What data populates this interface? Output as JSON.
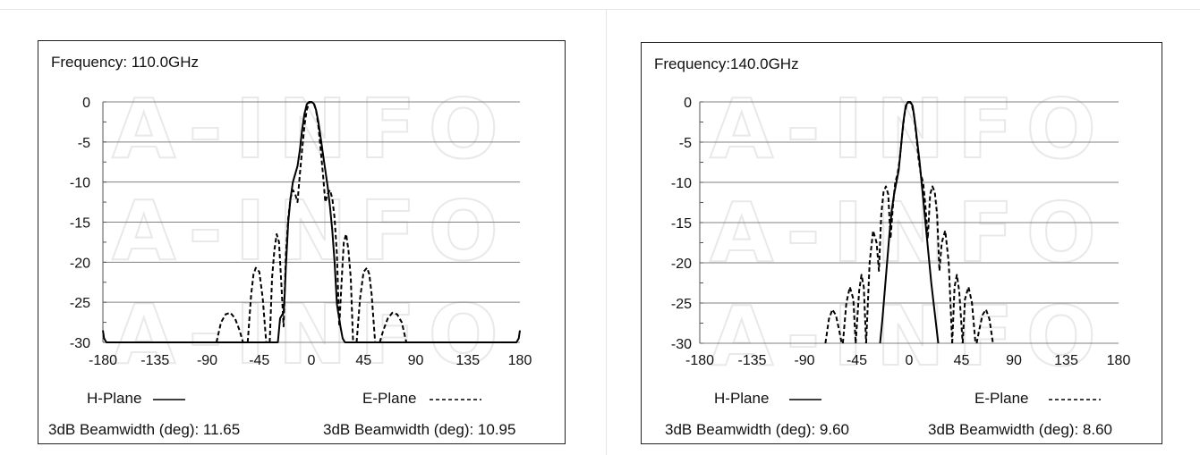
{
  "colors": {
    "line": "#000000",
    "grid": "#808080",
    "watermark": "#e9e9e9"
  },
  "watermark_text": "A-INFO",
  "chart_data": [
    {
      "type": "line",
      "title": "Frequency: 110.0GHz",
      "xlim": [
        -180,
        180
      ],
      "ylim": [
        -30,
        0
      ],
      "xticks": [
        "-180",
        "-135",
        "-90",
        "-45",
        "0",
        "45",
        "90",
        "135",
        "180"
      ],
      "yticks": [
        "0",
        "-5",
        "-10",
        "-15",
        "-20",
        "-25",
        "-30"
      ],
      "grid": "horizontal",
      "series": [
        {
          "name": "H-Plane",
          "style": "solid",
          "x": [
            -180,
            -179,
            -177,
            -29,
            -27,
            -25,
            -24,
            -23,
            -22,
            -20,
            -18,
            -16,
            -14,
            -12,
            -10,
            -8,
            -6,
            -4,
            -2,
            0,
            2,
            4,
            6,
            8,
            10,
            12,
            14,
            16,
            18,
            20,
            22,
            23,
            24,
            25,
            27,
            29,
            177,
            179,
            180
          ],
          "y": [
            -28.5,
            -29.5,
            -30,
            -30,
            -27,
            -26.5,
            -26.3,
            -24,
            -20.5,
            -15,
            -12,
            -10,
            -9,
            -8,
            -6,
            -3.5,
            -1.5,
            -0.3,
            0,
            0,
            -0.2,
            -1.0,
            -2.5,
            -4.5,
            -6.5,
            -8.5,
            -10.5,
            -13,
            -16,
            -20,
            -25.2,
            -26.2,
            -27,
            -28,
            -29.5,
            -30,
            -30,
            -29.5,
            -28.5
          ]
        },
        {
          "name": "E-Plane",
          "style": "dashed",
          "segments": [
            {
              "x": [
                -82,
                -78,
                -74,
                -70,
                -66,
                -62,
                -59
              ],
              "y": [
                -30,
                -27.5,
                -26.5,
                -26.3,
                -27,
                -28.5,
                -30
              ]
            },
            {
              "x": [
                -55,
                -52,
                -50,
                -48,
                -45,
                -42,
                -39
              ],
              "y": [
                -30,
                -24,
                -21.5,
                -20.7,
                -21.2,
                -24.5,
                -30
              ]
            },
            {
              "x": [
                -36,
                -34,
                -32,
                -30,
                -28,
                -26,
                -24,
                -22,
                -20,
                -18,
                -16,
                -14,
                -12,
                -10,
                -8,
                -6,
                -4,
                -2,
                0,
                2,
                4,
                6,
                8,
                10,
                12,
                14,
                16,
                18,
                20,
                22,
                24,
                26,
                28,
                30,
                32,
                34,
                36
              ],
              "y": [
                -30,
                -22,
                -18.5,
                -16.5,
                -17.5,
                -22.5,
                -28,
                -19,
                -14.5,
                -12,
                -11,
                -11.5,
                -12.5,
                -9,
                -6,
                -3,
                -1,
                -0.1,
                0,
                -0.1,
                -1,
                -3,
                -6,
                -9,
                -12.5,
                -11.5,
                -11,
                -12,
                -14.5,
                -19,
                -28,
                -22.5,
                -17.5,
                -16.5,
                -18.5,
                -22,
                -30
              ]
            },
            {
              "x": [
                39,
                42,
                45,
                48,
                50,
                52,
                55
              ],
              "y": [
                -30,
                -24.5,
                -21.2,
                -20.7,
                -21.5,
                -24,
                -30
              ]
            },
            {
              "x": [
                59,
                62,
                66,
                70,
                74,
                78,
                82
              ],
              "y": [
                -30,
                -28.5,
                -27,
                -26.3,
                -26.5,
                -27.5,
                -30
              ]
            }
          ]
        }
      ],
      "legend": [
        {
          "label": "H-Plane",
          "style": "solid"
        },
        {
          "label": "E-Plane",
          "style": "dashed"
        }
      ],
      "beamwidth": {
        "h": "3dB Beamwidth (deg): 11.65",
        "e": "3dB Beamwidth (deg): 10.95"
      }
    },
    {
      "type": "line",
      "title": "Frequency:140.0GHz",
      "xlim": [
        -180,
        180
      ],
      "ylim": [
        -30,
        0
      ],
      "xticks": [
        "-180",
        "-135",
        "-90",
        "-45",
        "0",
        "45",
        "90",
        "135",
        "180"
      ],
      "yticks": [
        "0",
        "-5",
        "-10",
        "-15",
        "-20",
        "-25",
        "-30"
      ],
      "grid": "horizontal",
      "series": [
        {
          "name": "H-Plane",
          "style": "solid",
          "x": [
            -25,
            -23,
            -21,
            -19,
            -17,
            -15,
            -13,
            -11,
            -9,
            -7,
            -5,
            -3,
            -1,
            0,
            1,
            3,
            5,
            7,
            9,
            11,
            13,
            15,
            17,
            19,
            21,
            23,
            25
          ],
          "y": [
            -30,
            -27,
            -23.5,
            -20,
            -16.5,
            -13.5,
            -11.5,
            -10,
            -8.5,
            -5.5,
            -2.5,
            -0.5,
            0,
            0,
            0,
            -0.5,
            -2.5,
            -5,
            -7.5,
            -10.5,
            -13.5,
            -16.5,
            -19.5,
            -22.5,
            -25,
            -27.5,
            -30
          ]
        },
        {
          "name": "E-Plane",
          "style": "dashed",
          "segments": [
            {
              "x": [
                -72,
                -69,
                -66,
                -63,
                -60,
                -58
              ],
              "y": [
                -30,
                -27,
                -25.8,
                -26.5,
                -28.5,
                -30
              ]
            },
            {
              "x": [
                -57,
                -54,
                -51,
                -48,
                -46
              ],
              "y": [
                -30,
                -25,
                -23,
                -24.5,
                -30
              ]
            },
            {
              "x": [
                -46,
                -43,
                -41,
                -39,
                -37
              ],
              "y": [
                -30,
                -23.5,
                -21.5,
                -23,
                -30
              ]
            },
            {
              "x": [
                -37,
                -34,
                -31,
                -28,
                -26,
                -24,
                -22,
                -20,
                -18,
                -16,
                -14,
                -12,
                -10,
                -8,
                -6,
                -4,
                -2,
                0,
                2,
                4,
                6,
                8,
                10,
                12,
                14,
                16,
                18,
                20,
                22,
                24,
                26,
                28,
                31,
                34,
                37
              ],
              "y": [
                -30,
                -20,
                -16,
                -17.5,
                -21,
                -14,
                -11.2,
                -10.5,
                -11.5,
                -17,
                -13,
                -10,
                -9,
                -7,
                -4,
                -1.5,
                -0.2,
                0,
                -0.2,
                -1.5,
                -4,
                -7,
                -9,
                -10,
                -13,
                -17,
                -11.5,
                -10.5,
                -11.2,
                -14,
                -21,
                -17.5,
                -16,
                -20,
                -30
              ]
            },
            {
              "x": [
                37,
                39,
                41,
                43,
                46
              ],
              "y": [
                -30,
                -23,
                -21.5,
                -23.5,
                -30
              ]
            },
            {
              "x": [
                46,
                48,
                51,
                54,
                57
              ],
              "y": [
                -30,
                -24.5,
                -23,
                -25,
                -30
              ]
            },
            {
              "x": [
                58,
                60,
                63,
                66,
                69,
                72
              ],
              "y": [
                -30,
                -28.5,
                -26.5,
                -25.8,
                -27,
                -30
              ]
            }
          ]
        }
      ],
      "legend": [
        {
          "label": "H-Plane",
          "style": "solid"
        },
        {
          "label": "E-Plane",
          "style": "dashed"
        }
      ],
      "beamwidth": {
        "h": "3dB Beamwidth (deg): 9.60",
        "e": "3dB Beamwidth (deg): 8.60"
      }
    }
  ]
}
